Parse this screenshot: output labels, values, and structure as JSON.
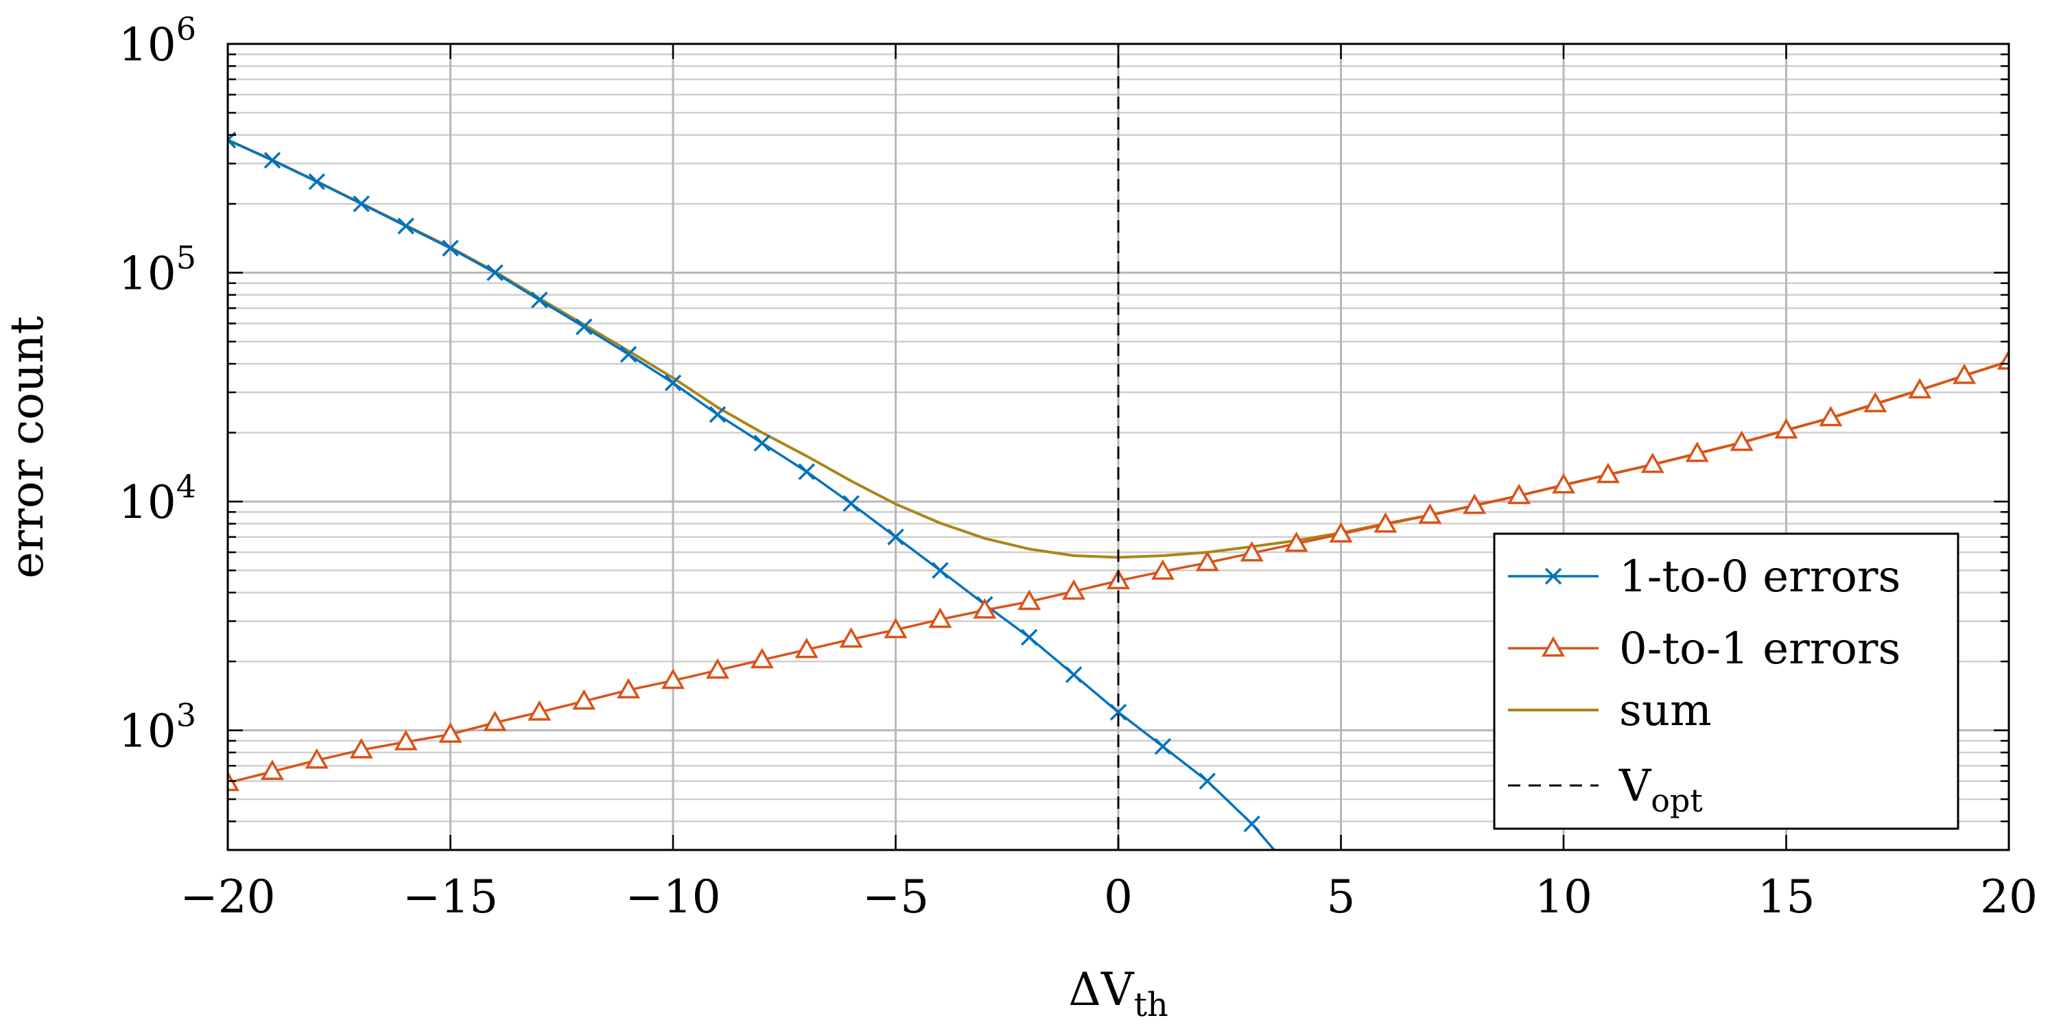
{
  "chart_data": {
    "type": "line",
    "title": "",
    "xlabel": {
      "main": "ΔV",
      "sub": "th"
    },
    "ylabel": "error count",
    "xlim": [
      -20,
      20
    ],
    "ylim": [
      300,
      1000000
    ],
    "yscale": "log",
    "grid": true,
    "xticks": [
      -20,
      -15,
      -10,
      -5,
      0,
      5,
      10,
      15,
      20
    ],
    "xtick_labels": [
      "−20",
      "−15",
      "−10",
      "−5",
      "0",
      "5",
      "10",
      "15",
      "20"
    ],
    "yticks": [
      {
        "value": 1000,
        "base": "10",
        "exp": "3"
      },
      {
        "value": 10000,
        "base": "10",
        "exp": "4"
      },
      {
        "value": 100000,
        "base": "10",
        "exp": "5"
      },
      {
        "value": 1000000,
        "base": "10",
        "exp": "6"
      }
    ],
    "legend_position": "bottom-right",
    "series": [
      {
        "name": "1-to-0 errors",
        "color": "#0072BD",
        "marker": "x",
        "x": [
          -20,
          -19,
          -18,
          -17,
          -16,
          -15,
          -14,
          -13,
          -12,
          -11,
          -10,
          -9,
          -8,
          -7,
          -6,
          -5,
          -4,
          -3,
          -2,
          -1,
          0,
          1,
          2,
          3,
          3.5
        ],
        "y": [
          380000,
          310000,
          250000,
          200000,
          160000,
          128000,
          100000,
          76000,
          58000,
          44000,
          33000,
          24000,
          18000,
          13500,
          9800,
          7000,
          5000,
          3550,
          2550,
          1750,
          1200,
          850,
          600,
          390,
          300
        ]
      },
      {
        "name": "0-to-1 errors",
        "color": "#D95319",
        "marker": "triangle",
        "x": [
          -20,
          -19,
          -18,
          -17,
          -16,
          -15,
          -14,
          -13,
          -12,
          -11,
          -10,
          -9,
          -8,
          -7,
          -6,
          -5,
          -4,
          -3,
          -2,
          -1,
          0,
          1,
          2,
          3,
          4,
          5,
          6,
          7,
          8,
          9,
          10,
          11,
          12,
          13,
          14,
          15,
          16,
          17,
          18,
          19,
          20
        ],
        "y": [
          590,
          660,
          740,
          820,
          890,
          960,
          1080,
          1200,
          1340,
          1500,
          1650,
          1830,
          2030,
          2250,
          2500,
          2750,
          3050,
          3350,
          3650,
          4050,
          4500,
          4950,
          5400,
          5950,
          6550,
          7200,
          7950,
          8700,
          9600,
          10600,
          11800,
          13100,
          14500,
          16200,
          18100,
          20500,
          23200,
          26700,
          30700,
          35500,
          41000
        ]
      },
      {
        "name": "sum",
        "color": "#A8861A",
        "marker": "none",
        "x": [
          -20,
          -19,
          -18,
          -17,
          -16,
          -15,
          -14,
          -13,
          -12,
          -11,
          -10,
          -9,
          -8,
          -7,
          -6,
          -5,
          -4,
          -3,
          -2,
          -1,
          0,
          1,
          2,
          3,
          4,
          5,
          6,
          7,
          8,
          9,
          10,
          11,
          12,
          13,
          14,
          15,
          16,
          17,
          18,
          19,
          20
        ],
        "y": [
          380600,
          310700,
          250700,
          200800,
          160900,
          129000,
          101100,
          77200,
          59300,
          45500,
          34700,
          25800,
          20000,
          15800,
          12300,
          9750,
          8050,
          6900,
          6200,
          5800,
          5700,
          5800,
          6000,
          6350,
          6750,
          7300,
          8000,
          8720,
          9610,
          10605,
          11802,
          13101,
          14500,
          16200,
          18100,
          20500,
          23200,
          26700,
          30700,
          35500,
          41000
        ]
      },
      {
        "name": "V",
        "name_sub": "opt",
        "color": "#000000",
        "marker": "none",
        "style": "dashed",
        "x": [
          0,
          0
        ],
        "y": [
          300,
          1000000
        ]
      }
    ]
  }
}
